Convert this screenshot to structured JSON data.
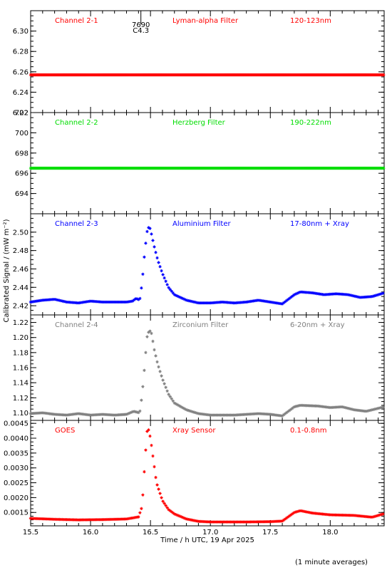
{
  "figure": {
    "ylabel": "Calibrated Signal / (mW m⁻²)",
    "xlabel": "Time / h UTC, 19 Apr 2025",
    "footnote": "(1 minute averages)"
  },
  "flare_marker": {
    "time": 16.42,
    "label_top": "7690",
    "label_bottom": "C4.3"
  },
  "chart_data": [
    {
      "type": "scatter",
      "name": "Channel 2-1",
      "filter": "Lyman-alpha Filter",
      "band": "120-123nm",
      "color": "#ff0000",
      "ylim": [
        6.22,
        6.32
      ],
      "yticks": [
        6.22,
        6.24,
        6.26,
        6.28,
        6.3
      ],
      "ytick_labels": [
        "6.22",
        "6.24",
        "6.26",
        "6.28",
        "6.30"
      ],
      "xlim": [
        15.5,
        18.45
      ],
      "x_range": [
        15.5,
        18.45
      ],
      "profile": [
        [
          15.5,
          6.257
        ],
        [
          18.45,
          6.257
        ]
      ]
    },
    {
      "type": "scatter",
      "name": "Channel 2-2",
      "filter": "Herzberg Filter",
      "band": "190-222nm",
      "color": "#00dd00",
      "ylim": [
        692,
        702
      ],
      "yticks": [
        694,
        696,
        698,
        700,
        702
      ],
      "ytick_labels": [
        "694",
        "696",
        "698",
        "700",
        "702"
      ],
      "xlim": [
        15.5,
        18.45
      ],
      "x_range": [
        15.5,
        18.45
      ],
      "profile": [
        [
          15.5,
          696.5
        ],
        [
          18.45,
          696.5
        ]
      ]
    },
    {
      "type": "scatter",
      "name": "Channel 2-3",
      "filter": "Aluminium Filter",
      "band": "17-80nm + Xray",
      "color": "#0000ff",
      "ylim": [
        2.41,
        2.52
      ],
      "yticks": [
        2.42,
        2.44,
        2.46,
        2.48,
        2.5
      ],
      "ytick_labels": [
        "2.42",
        "2.44",
        "2.46",
        "2.48",
        "2.50"
      ],
      "xlim": [
        15.5,
        18.45
      ],
      "x_range": [
        15.5,
        18.45
      ],
      "profile": [
        [
          15.5,
          2.424
        ],
        [
          15.6,
          2.426
        ],
        [
          15.7,
          2.427
        ],
        [
          15.8,
          2.424
        ],
        [
          15.9,
          2.423
        ],
        [
          16.0,
          2.425
        ],
        [
          16.1,
          2.424
        ],
        [
          16.2,
          2.424
        ],
        [
          16.3,
          2.424
        ],
        [
          16.35,
          2.425
        ],
        [
          16.38,
          2.428
        ],
        [
          16.41,
          2.426
        ],
        [
          16.43,
          2.445
        ],
        [
          16.45,
          2.476
        ],
        [
          16.47,
          2.5
        ],
        [
          16.49,
          2.507
        ],
        [
          16.51,
          2.497
        ],
        [
          16.53,
          2.485
        ],
        [
          16.56,
          2.47
        ],
        [
          16.6,
          2.455
        ],
        [
          16.65,
          2.44
        ],
        [
          16.7,
          2.432
        ],
        [
          16.8,
          2.426
        ],
        [
          16.9,
          2.423
        ],
        [
          17.0,
          2.423
        ],
        [
          17.1,
          2.424
        ],
        [
          17.2,
          2.423
        ],
        [
          17.3,
          2.424
        ],
        [
          17.4,
          2.426
        ],
        [
          17.5,
          2.424
        ],
        [
          17.6,
          2.422
        ],
        [
          17.7,
          2.432
        ],
        [
          17.75,
          2.435
        ],
        [
          17.85,
          2.434
        ],
        [
          17.95,
          2.432
        ],
        [
          18.05,
          2.433
        ],
        [
          18.15,
          2.432
        ],
        [
          18.25,
          2.429
        ],
        [
          18.35,
          2.43
        ],
        [
          18.45,
          2.434
        ]
      ]
    },
    {
      "type": "scatter",
      "name": "Channel 2-4",
      "filter": "Zirconium Filter",
      "band": "6-20nm + Xray",
      "color": "#808080",
      "ylim": [
        1.09,
        1.23
      ],
      "yticks": [
        1.1,
        1.12,
        1.14,
        1.16,
        1.18,
        1.2,
        1.22
      ],
      "ytick_labels": [
        "1.10",
        "1.12",
        "1.14",
        "1.16",
        "1.18",
        "1.20",
        "1.22"
      ],
      "xlim": [
        15.5,
        18.45
      ],
      "x_range": [
        15.5,
        18.45
      ],
      "profile": [
        [
          15.5,
          1.099
        ],
        [
          15.6,
          1.1
        ],
        [
          15.7,
          1.098
        ],
        [
          15.8,
          1.097
        ],
        [
          15.9,
          1.099
        ],
        [
          16.0,
          1.097
        ],
        [
          16.1,
          1.098
        ],
        [
          16.2,
          1.097
        ],
        [
          16.3,
          1.098
        ],
        [
          16.36,
          1.102
        ],
        [
          16.41,
          1.1
        ],
        [
          16.43,
          1.124
        ],
        [
          16.45,
          1.16
        ],
        [
          16.47,
          1.2
        ],
        [
          16.49,
          1.21
        ],
        [
          16.51,
          1.205
        ],
        [
          16.53,
          1.185
        ],
        [
          16.56,
          1.165
        ],
        [
          16.6,
          1.145
        ],
        [
          16.65,
          1.125
        ],
        [
          16.7,
          1.113
        ],
        [
          16.8,
          1.104
        ],
        [
          16.9,
          1.099
        ],
        [
          17.0,
          1.097
        ],
        [
          17.1,
          1.097
        ],
        [
          17.2,
          1.097
        ],
        [
          17.3,
          1.098
        ],
        [
          17.4,
          1.099
        ],
        [
          17.5,
          1.098
        ],
        [
          17.6,
          1.096
        ],
        [
          17.7,
          1.108
        ],
        [
          17.75,
          1.11
        ],
        [
          17.9,
          1.109
        ],
        [
          18.0,
          1.107
        ],
        [
          18.1,
          1.108
        ],
        [
          18.2,
          1.104
        ],
        [
          18.3,
          1.102
        ],
        [
          18.45,
          1.108
        ]
      ]
    },
    {
      "type": "scatter",
      "name": "GOES",
      "filter": "Xray Sensor",
      "band": "0.1-0.8nm",
      "color": "#ff0000",
      "ylim": [
        0.00105,
        0.0046
      ],
      "yticks": [
        0.0015,
        0.002,
        0.0025,
        0.003,
        0.0035,
        0.004,
        0.0045
      ],
      "ytick_labels": [
        "0.0015",
        "0.0020",
        "0.0025",
        "0.0030",
        "0.0035",
        "0.0040",
        "0.0045"
      ],
      "xlim": [
        15.5,
        18.45
      ],
      "x_range": [
        15.5,
        18.45
      ],
      "profile": [
        [
          15.5,
          0.0013
        ],
        [
          15.7,
          0.00127
        ],
        [
          15.9,
          0.00125
        ],
        [
          16.1,
          0.00126
        ],
        [
          16.3,
          0.00128
        ],
        [
          16.4,
          0.00135
        ],
        [
          16.43,
          0.0017
        ],
        [
          16.45,
          0.003
        ],
        [
          16.47,
          0.0042
        ],
        [
          16.48,
          0.00435
        ],
        [
          16.5,
          0.004
        ],
        [
          16.52,
          0.0034
        ],
        [
          16.55,
          0.0025
        ],
        [
          16.6,
          0.0019
        ],
        [
          16.65,
          0.0016
        ],
        [
          16.7,
          0.00145
        ],
        [
          16.8,
          0.00128
        ],
        [
          16.9,
          0.0012
        ],
        [
          17.0,
          0.00118
        ],
        [
          17.1,
          0.00118
        ],
        [
          17.3,
          0.00118
        ],
        [
          17.5,
          0.00119
        ],
        [
          17.6,
          0.00121
        ],
        [
          17.7,
          0.0015
        ],
        [
          17.75,
          0.00156
        ],
        [
          17.85,
          0.00148
        ],
        [
          18.0,
          0.00142
        ],
        [
          18.2,
          0.0014
        ],
        [
          18.35,
          0.00134
        ],
        [
          18.45,
          0.00146
        ]
      ]
    }
  ],
  "x_axis": {
    "ticks": [
      15.5,
      16.0,
      16.5,
      17.0,
      17.5,
      18.0
    ],
    "tick_labels": [
      "15.5",
      "16.0",
      "16.5",
      "17.0",
      "17.5",
      "18.0"
    ],
    "minor_step": 0.1
  }
}
